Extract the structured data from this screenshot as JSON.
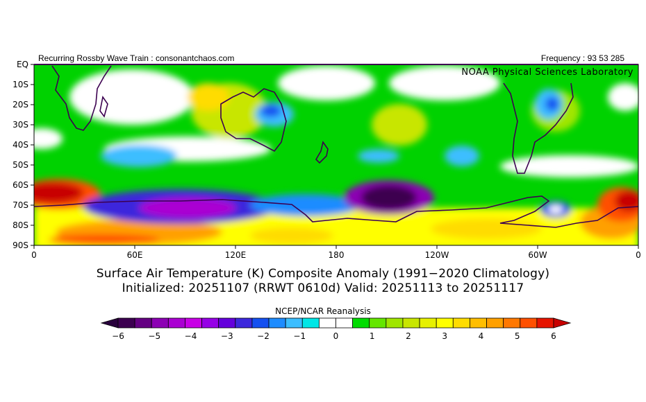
{
  "header": {
    "left": "Recurring Rossby Wave Train : consonantchaos.com",
    "right": "Frequency : 93 53 285"
  },
  "map": {
    "credit": "NOAA Physical Sciences Laboratory",
    "lat_labels": [
      "EQ",
      "10S",
      "20S",
      "30S",
      "40S",
      "50S",
      "60S",
      "70S",
      "80S",
      "90S"
    ],
    "lon_labels": [
      "0",
      "60E",
      "120E",
      "180",
      "120W",
      "60W",
      "0"
    ],
    "fill_color": "#00d200"
  },
  "titles": {
    "line1": "Surface Air Temperature (K) Composite Anomaly (1991−2020 Climatology)",
    "line2": "Initialized: 20251107 (RRWT 0610d) Valid: 20251113 to 20251117"
  },
  "colorbar": {
    "label": "NCEP/NCAR Reanalysis",
    "tick_labels": [
      "−6",
      "−5",
      "−4",
      "−3",
      "−2",
      "−1",
      "0",
      "1",
      "2",
      "3",
      "4",
      "5",
      "6"
    ],
    "colors": [
      "#3c0050",
      "#640082",
      "#8c00b4",
      "#aa00d2",
      "#c800e6",
      "#9600e6",
      "#6400dc",
      "#3c28dc",
      "#1450f0",
      "#1e8cff",
      "#3cbeff",
      "#00e6e6",
      "#ffffff",
      "#ffffff",
      "#00dc00",
      "#64e600",
      "#a0e600",
      "#c8e600",
      "#e6f000",
      "#ffff00",
      "#ffdc00",
      "#ffbe00",
      "#ffa000",
      "#ff7800",
      "#ff5000",
      "#e61400"
    ],
    "under_color": "#28003c",
    "over_color": "#c80000"
  }
}
